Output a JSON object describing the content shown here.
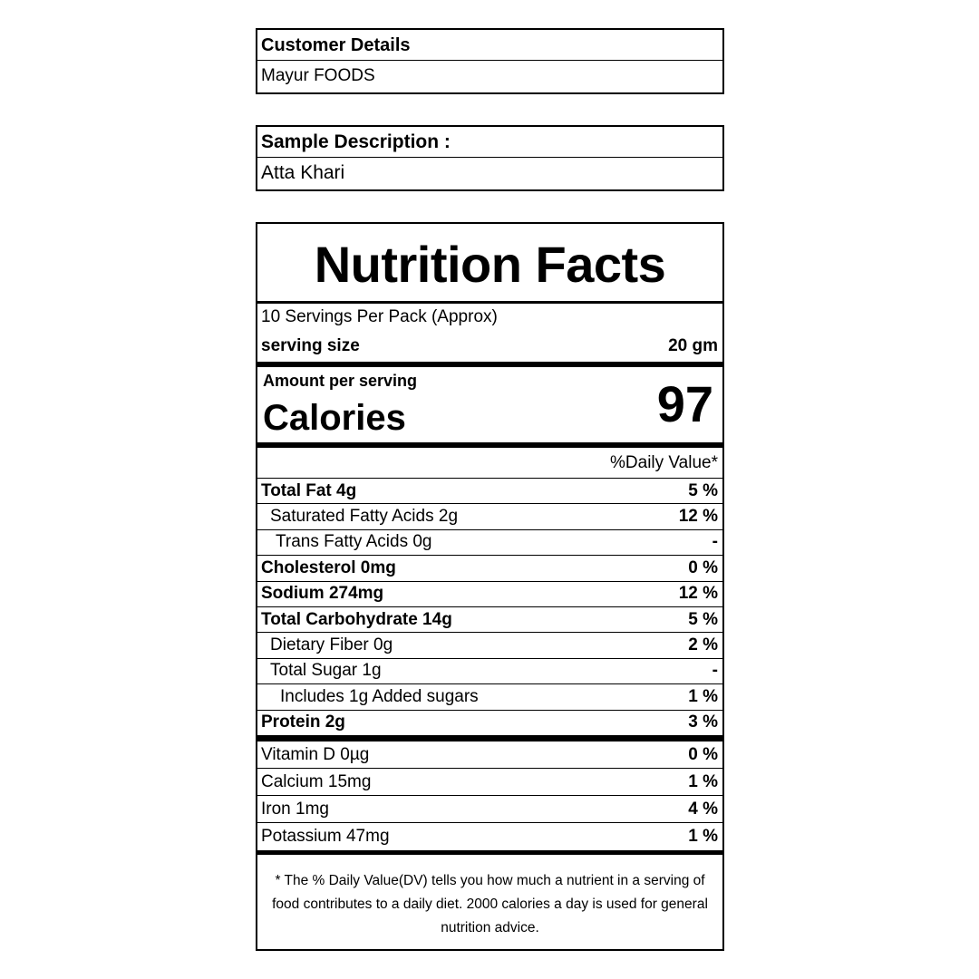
{
  "customer": {
    "label": "Customer Details",
    "value": "Mayur FOODS"
  },
  "sample": {
    "label": "Sample Description :",
    "value": "Atta Khari"
  },
  "nutrition": {
    "title": "Nutrition Facts",
    "servings_per_pack": "10 Servings Per Pack (Approx)",
    "serving_size_label": "serving size",
    "serving_size_value": "20 gm",
    "amount_per_serving": "Amount per serving",
    "calories_label": "Calories",
    "calories_value": "97",
    "dv_header": "%Daily Value*",
    "nutrients": [
      {
        "name": "Total Fat 4g",
        "dv": "5 %",
        "bold": true,
        "indent": 0
      },
      {
        "name": "Saturated Fatty Acids 2g",
        "dv": "12 %",
        "bold": false,
        "indent": 1
      },
      {
        "name": "Trans Fatty Acids 0g",
        "dv": "-",
        "bold": false,
        "indent": 2
      },
      {
        "name": "Cholesterol 0mg",
        "dv": "0 %",
        "bold": true,
        "indent": 0
      },
      {
        "name": "Sodium 274mg",
        "dv": "12 %",
        "bold": true,
        "indent": 0
      },
      {
        "name": "Total Carbohydrate 14g",
        "dv": "5 %",
        "bold": true,
        "indent": 0
      },
      {
        "name": "Dietary Fiber 0g",
        "dv": "2 %",
        "bold": false,
        "indent": 1
      },
      {
        "name": "Total Sugar 1g",
        "dv": "-",
        "bold": false,
        "indent": 1
      },
      {
        "name": "Includes 1g Added sugars",
        "dv": "1 %",
        "bold": false,
        "indent": 3
      },
      {
        "name": "Protein 2g",
        "dv": "3 %",
        "bold": true,
        "indent": 0
      }
    ],
    "vitamins": [
      {
        "name": "Vitamin D 0µg",
        "dv": "0 %"
      },
      {
        "name": "Calcium 15mg",
        "dv": "1 %"
      },
      {
        "name": "Iron 1mg",
        "dv": "4 %"
      },
      {
        "name": "Potassium 47mg",
        "dv": "1 %"
      }
    ],
    "footnote": "* The %  Daily Value(DV) tells you how much a nutrient in a serving of food contributes to a daily diet. 2000 calories a day is used for general nutrition advice."
  }
}
